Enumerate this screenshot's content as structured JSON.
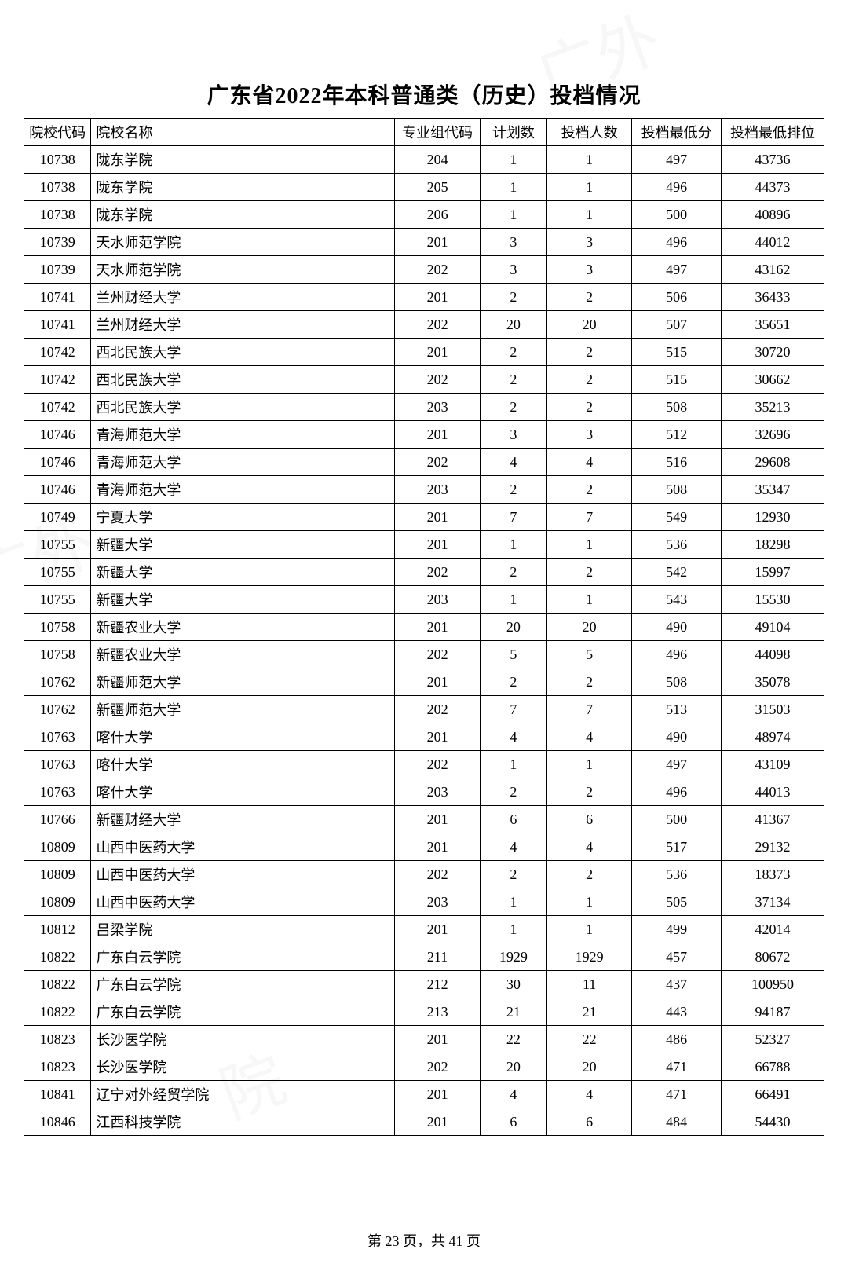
{
  "title": "广东省2022年本科普通类（历史）投档情况",
  "footer_prefix": "第 ",
  "footer_page": "23",
  "footer_mid": " 页，共 ",
  "footer_total": "41",
  "footer_suffix": " 页",
  "table": {
    "columns": [
      "院校代码",
      "院校名称",
      "专业组代码",
      "计划数",
      "投档人数",
      "投档最低分",
      "投档最低排位"
    ],
    "col_classes": [
      "col-code",
      "col-name",
      "col-group",
      "col-plan",
      "col-admit",
      "col-min",
      "col-rank"
    ],
    "rows": [
      [
        "10738",
        "陇东学院",
        "204",
        "1",
        "1",
        "497",
        "43736"
      ],
      [
        "10738",
        "陇东学院",
        "205",
        "1",
        "1",
        "496",
        "44373"
      ],
      [
        "10738",
        "陇东学院",
        "206",
        "1",
        "1",
        "500",
        "40896"
      ],
      [
        "10739",
        "天水师范学院",
        "201",
        "3",
        "3",
        "496",
        "44012"
      ],
      [
        "10739",
        "天水师范学院",
        "202",
        "3",
        "3",
        "497",
        "43162"
      ],
      [
        "10741",
        "兰州财经大学",
        "201",
        "2",
        "2",
        "506",
        "36433"
      ],
      [
        "10741",
        "兰州财经大学",
        "202",
        "20",
        "20",
        "507",
        "35651"
      ],
      [
        "10742",
        "西北民族大学",
        "201",
        "2",
        "2",
        "515",
        "30720"
      ],
      [
        "10742",
        "西北民族大学",
        "202",
        "2",
        "2",
        "515",
        "30662"
      ],
      [
        "10742",
        "西北民族大学",
        "203",
        "2",
        "2",
        "508",
        "35213"
      ],
      [
        "10746",
        "青海师范大学",
        "201",
        "3",
        "3",
        "512",
        "32696"
      ],
      [
        "10746",
        "青海师范大学",
        "202",
        "4",
        "4",
        "516",
        "29608"
      ],
      [
        "10746",
        "青海师范大学",
        "203",
        "2",
        "2",
        "508",
        "35347"
      ],
      [
        "10749",
        "宁夏大学",
        "201",
        "7",
        "7",
        "549",
        "12930"
      ],
      [
        "10755",
        "新疆大学",
        "201",
        "1",
        "1",
        "536",
        "18298"
      ],
      [
        "10755",
        "新疆大学",
        "202",
        "2",
        "2",
        "542",
        "15997"
      ],
      [
        "10755",
        "新疆大学",
        "203",
        "1",
        "1",
        "543",
        "15530"
      ],
      [
        "10758",
        "新疆农业大学",
        "201",
        "20",
        "20",
        "490",
        "49104"
      ],
      [
        "10758",
        "新疆农业大学",
        "202",
        "5",
        "5",
        "496",
        "44098"
      ],
      [
        "10762",
        "新疆师范大学",
        "201",
        "2",
        "2",
        "508",
        "35078"
      ],
      [
        "10762",
        "新疆师范大学",
        "202",
        "7",
        "7",
        "513",
        "31503"
      ],
      [
        "10763",
        "喀什大学",
        "201",
        "4",
        "4",
        "490",
        "48974"
      ],
      [
        "10763",
        "喀什大学",
        "202",
        "1",
        "1",
        "497",
        "43109"
      ],
      [
        "10763",
        "喀什大学",
        "203",
        "2",
        "2",
        "496",
        "44013"
      ],
      [
        "10766",
        "新疆财经大学",
        "201",
        "6",
        "6",
        "500",
        "41367"
      ],
      [
        "10809",
        "山西中医药大学",
        "201",
        "4",
        "4",
        "517",
        "29132"
      ],
      [
        "10809",
        "山西中医药大学",
        "202",
        "2",
        "2",
        "536",
        "18373"
      ],
      [
        "10809",
        "山西中医药大学",
        "203",
        "1",
        "1",
        "505",
        "37134"
      ],
      [
        "10812",
        "吕梁学院",
        "201",
        "1",
        "1",
        "499",
        "42014"
      ],
      [
        "10822",
        "广东白云学院",
        "211",
        "1929",
        "1929",
        "457",
        "80672"
      ],
      [
        "10822",
        "广东白云学院",
        "212",
        "30",
        "11",
        "437",
        "100950"
      ],
      [
        "10822",
        "广东白云学院",
        "213",
        "21",
        "21",
        "443",
        "94187"
      ],
      [
        "10823",
        "长沙医学院",
        "201",
        "22",
        "22",
        "486",
        "52327"
      ],
      [
        "10823",
        "长沙医学院",
        "202",
        "20",
        "20",
        "471",
        "66788"
      ],
      [
        "10841",
        "辽宁对外经贸学院",
        "201",
        "4",
        "4",
        "471",
        "66491"
      ],
      [
        "10846",
        "江西科技学院",
        "201",
        "6",
        "6",
        "484",
        "54430"
      ]
    ]
  },
  "watermarks": [
    "广外",
    "广外",
    "院",
    "院"
  ]
}
